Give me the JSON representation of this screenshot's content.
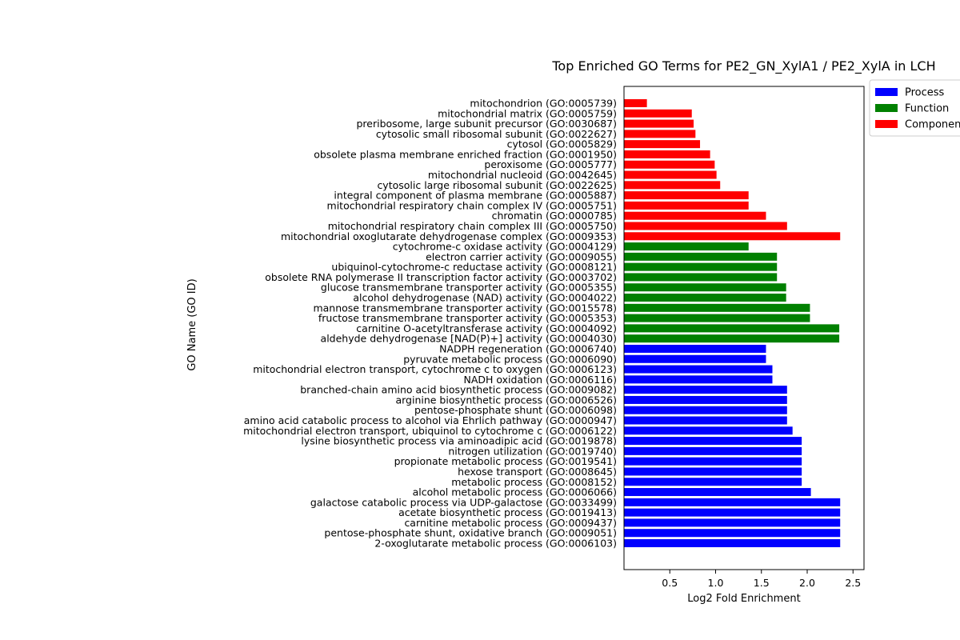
{
  "chart_data": {
    "type": "bar",
    "orientation": "horizontal",
    "title": "Top Enriched GO Terms for PE2_GN_XylA1 / PE2_XylA in LCH",
    "xlabel": "Log2 Fold Enrichment",
    "ylabel": "GO Name (GO ID)",
    "xlim": [
      0,
      2.62
    ],
    "xticks": [
      0.5,
      1.0,
      1.5,
      2.0,
      2.5
    ],
    "xtick_labels": [
      "0.5",
      "1.0",
      "1.5",
      "2.0",
      "2.5"
    ],
    "grid": false,
    "legend_position": "outside-top-right",
    "legend": [
      {
        "label": "Process",
        "color": "#0000ff"
      },
      {
        "label": "Function",
        "color": "#008000"
      },
      {
        "label": "Component",
        "color": "#ff0000"
      }
    ],
    "categories_top_to_bottom": [
      {
        "label": "mitochondrion (GO:0005739)",
        "value": 0.25,
        "group": "Component",
        "color": "#ff0000"
      },
      {
        "label": "mitochondrial matrix (GO:0005759)",
        "value": 0.74,
        "group": "Component",
        "color": "#ff0000"
      },
      {
        "label": "preribosome, large subunit precursor (GO:0030687)",
        "value": 0.76,
        "group": "Component",
        "color": "#ff0000"
      },
      {
        "label": "cytosolic small ribosomal subunit (GO:0022627)",
        "value": 0.78,
        "group": "Component",
        "color": "#ff0000"
      },
      {
        "label": "cytosol (GO:0005829)",
        "value": 0.83,
        "group": "Component",
        "color": "#ff0000"
      },
      {
        "label": "obsolete plasma membrane enriched fraction (GO:0001950)",
        "value": 0.94,
        "group": "Component",
        "color": "#ff0000"
      },
      {
        "label": "peroxisome (GO:0005777)",
        "value": 0.99,
        "group": "Component",
        "color": "#ff0000"
      },
      {
        "label": "mitochondrial nucleoid (GO:0042645)",
        "value": 1.01,
        "group": "Component",
        "color": "#ff0000"
      },
      {
        "label": "cytosolic large ribosomal subunit (GO:0022625)",
        "value": 1.05,
        "group": "Component",
        "color": "#ff0000"
      },
      {
        "label": "integral component of plasma membrane (GO:0005887)",
        "value": 1.36,
        "group": "Component",
        "color": "#ff0000"
      },
      {
        "label": "mitochondrial respiratory chain complex IV (GO:0005751)",
        "value": 1.36,
        "group": "Component",
        "color": "#ff0000"
      },
      {
        "label": "chromatin (GO:0000785)",
        "value": 1.55,
        "group": "Component",
        "color": "#ff0000"
      },
      {
        "label": "mitochondrial respiratory chain complex III (GO:0005750)",
        "value": 1.78,
        "group": "Component",
        "color": "#ff0000"
      },
      {
        "label": "mitochondrial oxoglutarate dehydrogenase complex (GO:0009353)",
        "value": 2.36,
        "group": "Component",
        "color": "#ff0000"
      },
      {
        "label": "cytochrome-c oxidase activity (GO:0004129)",
        "value": 1.36,
        "group": "Function",
        "color": "#008000"
      },
      {
        "label": "electron carrier activity (GO:0009055)",
        "value": 1.67,
        "group": "Function",
        "color": "#008000"
      },
      {
        "label": "ubiquinol-cytochrome-c reductase activity (GO:0008121)",
        "value": 1.67,
        "group": "Function",
        "color": "#008000"
      },
      {
        "label": "obsolete RNA polymerase II transcription factor activity (GO:0003702)",
        "value": 1.67,
        "group": "Function",
        "color": "#008000"
      },
      {
        "label": "glucose transmembrane transporter activity (GO:0005355)",
        "value": 1.77,
        "group": "Function",
        "color": "#008000"
      },
      {
        "label": "alcohol dehydrogenase (NAD) activity (GO:0004022)",
        "value": 1.77,
        "group": "Function",
        "color": "#008000"
      },
      {
        "label": "mannose transmembrane transporter activity (GO:0015578)",
        "value": 2.03,
        "group": "Function",
        "color": "#008000"
      },
      {
        "label": "fructose transmembrane transporter activity (GO:0005353)",
        "value": 2.03,
        "group": "Function",
        "color": "#008000"
      },
      {
        "label": "carnitine O-acetyltransferase activity (GO:0004092)",
        "value": 2.35,
        "group": "Function",
        "color": "#008000"
      },
      {
        "label": "aldehyde dehydrogenase [NAD(P)+] activity (GO:0004030)",
        "value": 2.35,
        "group": "Function",
        "color": "#008000"
      },
      {
        "label": "NADPH regeneration (GO:0006740)",
        "value": 1.55,
        "group": "Process",
        "color": "#0000ff"
      },
      {
        "label": "pyruvate metabolic process (GO:0006090)",
        "value": 1.55,
        "group": "Process",
        "color": "#0000ff"
      },
      {
        "label": "mitochondrial electron transport, cytochrome c to oxygen (GO:0006123)",
        "value": 1.62,
        "group": "Process",
        "color": "#0000ff"
      },
      {
        "label": "NADH oxidation (GO:0006116)",
        "value": 1.62,
        "group": "Process",
        "color": "#0000ff"
      },
      {
        "label": "branched-chain amino acid biosynthetic process (GO:0009082)",
        "value": 1.78,
        "group": "Process",
        "color": "#0000ff"
      },
      {
        "label": "arginine biosynthetic process (GO:0006526)",
        "value": 1.78,
        "group": "Process",
        "color": "#0000ff"
      },
      {
        "label": "pentose-phosphate shunt (GO:0006098)",
        "value": 1.78,
        "group": "Process",
        "color": "#0000ff"
      },
      {
        "label": "amino acid catabolic process to alcohol via Ehrlich pathway (GO:0000947)",
        "value": 1.78,
        "group": "Process",
        "color": "#0000ff"
      },
      {
        "label": "mitochondrial electron transport, ubiquinol to cytochrome c (GO:0006122)",
        "value": 1.84,
        "group": "Process",
        "color": "#0000ff"
      },
      {
        "label": "lysine biosynthetic process via aminoadipic acid (GO:0019878)",
        "value": 1.94,
        "group": "Process",
        "color": "#0000ff"
      },
      {
        "label": "nitrogen utilization (GO:0019740)",
        "value": 1.94,
        "group": "Process",
        "color": "#0000ff"
      },
      {
        "label": "propionate metabolic process (GO:0019541)",
        "value": 1.94,
        "group": "Process",
        "color": "#0000ff"
      },
      {
        "label": "hexose transport (GO:0008645)",
        "value": 1.94,
        "group": "Process",
        "color": "#0000ff"
      },
      {
        "label": "metabolic process (GO:0008152)",
        "value": 1.94,
        "group": "Process",
        "color": "#0000ff"
      },
      {
        "label": "alcohol metabolic process (GO:0006066)",
        "value": 2.04,
        "group": "Process",
        "color": "#0000ff"
      },
      {
        "label": "galactose catabolic process via UDP-galactose (GO:0033499)",
        "value": 2.36,
        "group": "Process",
        "color": "#0000ff"
      },
      {
        "label": "acetate biosynthetic process (GO:0019413)",
        "value": 2.36,
        "group": "Process",
        "color": "#0000ff"
      },
      {
        "label": "carnitine metabolic process (GO:0009437)",
        "value": 2.36,
        "group": "Process",
        "color": "#0000ff"
      },
      {
        "label": "pentose-phosphate shunt, oxidative branch (GO:0009051)",
        "value": 2.36,
        "group": "Process",
        "color": "#0000ff"
      },
      {
        "label": "2-oxoglutarate metabolic process (GO:0006103)",
        "value": 2.36,
        "group": "Process",
        "color": "#0000ff"
      }
    ]
  }
}
